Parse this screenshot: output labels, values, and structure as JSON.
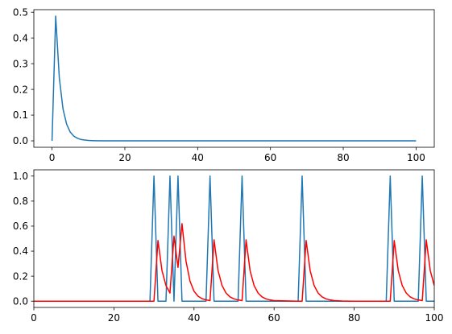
{
  "chart_data": [
    {
      "type": "line",
      "xlim": [
        -5,
        105
      ],
      "ylim": [
        -0.025,
        0.51
      ],
      "x_ticks": [
        0,
        20,
        40,
        60,
        80,
        100
      ],
      "x_tick_labels": [
        "0",
        "20",
        "40",
        "60",
        "80",
        "100"
      ],
      "y_ticks": [
        0.0,
        0.1,
        0.2,
        0.3,
        0.4,
        0.5
      ],
      "y_tick_labels": [
        "0.0",
        "0.1",
        "0.2",
        "0.3",
        "0.4",
        "0.5"
      ],
      "grid": false,
      "series": [
        {
          "color": "#1f77b4",
          "x": [
            0,
            1,
            2,
            3,
            4,
            5,
            6,
            7,
            8,
            9,
            10,
            11,
            12,
            14,
            16,
            20,
            30,
            40,
            50,
            60,
            70,
            80,
            90,
            100
          ],
          "y": [
            0.0,
            0.485,
            0.245,
            0.125,
            0.065,
            0.034,
            0.018,
            0.01,
            0.005,
            0.003,
            0.0015,
            0.0008,
            0.0004,
            0.0001,
            0.0,
            0.0,
            0.0,
            0.0,
            0.0,
            0.0,
            0.0,
            0.0,
            0.0,
            0.0
          ]
        }
      ]
    },
    {
      "type": "line",
      "xlim": [
        0,
        100
      ],
      "ylim": [
        -0.05,
        1.05
      ],
      "x_ticks": [
        0,
        20,
        40,
        60,
        80,
        100
      ],
      "x_tick_labels": [
        "0",
        "20",
        "40",
        "60",
        "80",
        "100"
      ],
      "y_ticks": [
        0.0,
        0.2,
        0.4,
        0.6,
        0.8,
        1.0
      ],
      "y_tick_labels": [
        "0.0",
        "0.2",
        "0.4",
        "0.6",
        "0.8",
        "1.0"
      ],
      "grid": false,
      "spikes": [
        30,
        34,
        36,
        44,
        52,
        67,
        89,
        97
      ],
      "series": [
        {
          "color": "#1f77b4",
          "x": [
            0,
            29,
            30,
            31,
            33,
            34,
            35,
            36,
            37,
            43,
            44,
            45,
            51,
            52,
            53,
            66,
            67,
            68,
            88,
            89,
            90,
            96,
            97,
            98,
            100
          ],
          "y": [
            0,
            0,
            1,
            0,
            0,
            1,
            0,
            1,
            0,
            0,
            1,
            0,
            0,
            1,
            0,
            0,
            1,
            0,
            0,
            1,
            0,
            0,
            1,
            0,
            0
          ]
        },
        {
          "color": "#ff0000",
          "x": [
            0,
            30,
            31,
            32,
            33,
            34,
            35,
            36,
            37,
            38,
            39,
            40,
            41,
            42,
            43,
            44,
            45,
            46,
            47,
            48,
            49,
            50,
            51,
            52,
            53,
            54,
            55,
            56,
            57,
            58,
            59,
            60,
            66,
            67,
            68,
            69,
            70,
            71,
            72,
            73,
            74,
            75,
            76,
            77,
            78,
            80,
            84,
            88,
            89,
            90,
            91,
            92,
            93,
            94,
            95,
            96,
            97,
            98,
            99,
            100
          ],
          "y": [
            0.0,
            0.0,
            0.485,
            0.245,
            0.125,
            0.065,
            0.52,
            0.27,
            0.62,
            0.32,
            0.16,
            0.08,
            0.04,
            0.02,
            0.01,
            0.005,
            0.49,
            0.245,
            0.125,
            0.065,
            0.034,
            0.018,
            0.01,
            0.005,
            0.49,
            0.245,
            0.125,
            0.065,
            0.034,
            0.018,
            0.01,
            0.005,
            0.0,
            0.0,
            0.485,
            0.245,
            0.125,
            0.065,
            0.034,
            0.018,
            0.01,
            0.005,
            0.003,
            0.0015,
            0.0008,
            0.0,
            0.0,
            0.0,
            0.0,
            0.485,
            0.245,
            0.125,
            0.065,
            0.034,
            0.018,
            0.01,
            0.005,
            0.49,
            0.245,
            0.125
          ]
        }
      ]
    }
  ]
}
